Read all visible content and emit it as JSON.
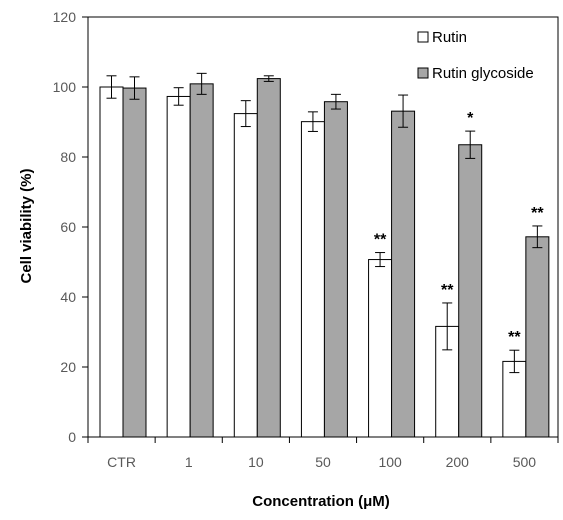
{
  "chart_data": {
    "type": "bar",
    "title": "",
    "xlabel": "Concentration (μM)",
    "ylabel": "Cell viability (%)",
    "ylim": [
      0,
      120
    ],
    "yticks": [
      0,
      20,
      40,
      60,
      80,
      100,
      120
    ],
    "categories": [
      "CTR",
      "1",
      "10",
      "50",
      "100",
      "200",
      "500"
    ],
    "grid": false,
    "legend_position": "top-right",
    "series": [
      {
        "name": "Rutin",
        "color": "#ffffff",
        "values": [
          100.0,
          97.3,
          92.4,
          90.1,
          50.7,
          31.6,
          21.6
        ],
        "errors": [
          3.2,
          2.5,
          3.7,
          2.8,
          2.0,
          6.7,
          3.2
        ],
        "significance": [
          "",
          "",
          "",
          "",
          "**",
          "**",
          "**"
        ]
      },
      {
        "name": "Rutin glycoside",
        "color": "#a6a6a6",
        "values": [
          99.7,
          100.9,
          102.4,
          95.8,
          93.1,
          83.5,
          57.2
        ],
        "errors": [
          3.2,
          3.0,
          0.8,
          2.1,
          4.6,
          3.9,
          3.1
        ],
        "significance": [
          "",
          "",
          "",
          "",
          "",
          "*",
          "**"
        ]
      }
    ]
  }
}
